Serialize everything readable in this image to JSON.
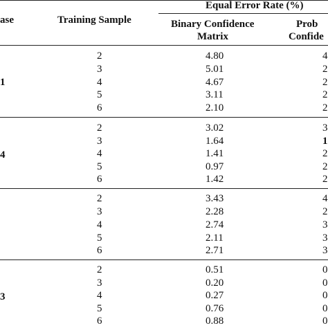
{
  "header": {
    "group_title": "Equal Error Rate (%)",
    "col_database": "ase",
    "col_training_sample": "Training Sample",
    "col_binary_line1": "Binary Confidence",
    "col_binary_line2": "Matrix",
    "col_prob_line1": "Prob",
    "col_prob_line2": "Confide"
  },
  "groups": [
    {
      "database_label": "1",
      "rows": [
        {
          "sample": "2",
          "binary": "4.80",
          "prob": "4"
        },
        {
          "sample": "3",
          "binary": "5.01",
          "prob": "2"
        },
        {
          "sample": "4",
          "binary": "4.67",
          "prob": "2"
        },
        {
          "sample": "5",
          "binary": "3.11",
          "prob": "2"
        },
        {
          "sample": "6",
          "binary": "2.10",
          "prob": "2"
        }
      ]
    },
    {
      "database_label": "4",
      "rows": [
        {
          "sample": "2",
          "binary": "3.02",
          "prob": "3"
        },
        {
          "sample": "3",
          "binary": "1.64",
          "prob": "1"
        },
        {
          "sample": "4",
          "binary": "1.41",
          "prob": "2"
        },
        {
          "sample": "5",
          "binary": "0.97",
          "prob": "2"
        },
        {
          "sample": "6",
          "binary": "1.42",
          "prob": "2"
        }
      ]
    },
    {
      "database_label": "",
      "rows": [
        {
          "sample": "2",
          "binary": "3.43",
          "prob": "4"
        },
        {
          "sample": "3",
          "binary": "2.28",
          "prob": "2"
        },
        {
          "sample": "4",
          "binary": "2.74",
          "prob": "3"
        },
        {
          "sample": "5",
          "binary": "2.11",
          "prob": "3"
        },
        {
          "sample": "6",
          "binary": "2.71",
          "prob": "3"
        }
      ]
    },
    {
      "database_label": "3",
      "rows": [
        {
          "sample": "2",
          "binary": "0.51",
          "prob": "0"
        },
        {
          "sample": "3",
          "binary": "0.20",
          "prob": "0"
        },
        {
          "sample": "4",
          "binary": "0.27",
          "prob": "0"
        },
        {
          "sample": "5",
          "binary": "0.76",
          "prob": "0"
        },
        {
          "sample": "6",
          "binary": "0.88",
          "prob": "0"
        }
      ]
    }
  ]
}
